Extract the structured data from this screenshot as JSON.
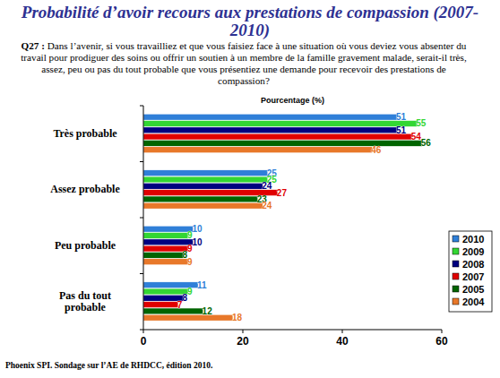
{
  "chart_data": {
    "type": "bar",
    "orientation": "horizontal",
    "title": "Probabilité d’avoir recours aux prestations de compassion (2007-2010)",
    "annotations": [
      "Q27 :",
      "Dans l’avenir, si vous travailliez et que vous faisiez face à une situation où vous deviez vous absenter du travail pour prodiguer des soins ou offrir un soutien à un membre de la famille gravement malade, serait-il très, assez, peu ou pas du tout probable que vous présentiez une demande pour recevoir des prestations de compassion?",
      "Phoenix SPI. Sondage sur l’AE de RHDCC, édition 2010."
    ],
    "xlabel": "Pourcentage (%)",
    "categories": [
      "Très probable",
      "Assez probable",
      "Peu probable",
      "Pas du tout probable"
    ],
    "series": [
      {
        "name": "2010",
        "color": "#2f7fd8",
        "values": [
          51,
          25,
          10,
          11
        ]
      },
      {
        "name": "2009",
        "color": "#33d633",
        "values": [
          55,
          25,
          9,
          9
        ]
      },
      {
        "name": "2008",
        "color": "#000080",
        "values": [
          51,
          24,
          10,
          8
        ]
      },
      {
        "name": "2007",
        "color": "#e00000",
        "values": [
          54,
          27,
          9,
          7
        ]
      },
      {
        "name": "2005",
        "color": "#006400",
        "values": [
          56,
          23,
          8,
          12
        ]
      },
      {
        "name": "2004",
        "color": "#e8782a",
        "values": [
          46,
          24,
          9,
          18
        ]
      }
    ],
    "xlim": [
      0,
      60
    ],
    "xticks": [
      0,
      20,
      40,
      60
    ],
    "grid": false,
    "data_labels": true,
    "legend": "right"
  }
}
